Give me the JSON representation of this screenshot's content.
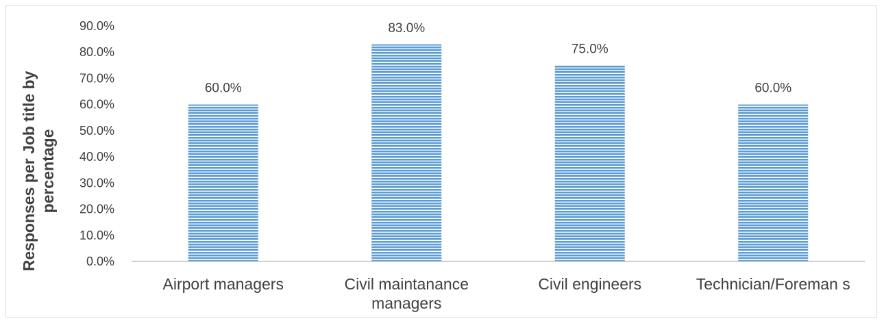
{
  "chart_data": {
    "type": "bar",
    "title": "",
    "xlabel": "",
    "ylabel_lines": [
      "Responses per Job title by",
      "percentage"
    ],
    "categories": [
      [
        "Airport managers"
      ],
      [
        "Civil maintanance",
        "managers"
      ],
      [
        "Civil engineers"
      ],
      [
        "Technician/Foreman s"
      ]
    ],
    "values": [
      60.0,
      83.0,
      75.0,
      60.0
    ],
    "data_labels": [
      "60.0%",
      "83.0%",
      "75.0%",
      "60.0%"
    ],
    "y_ticks": [
      "0.0%",
      "10.0%",
      "20.0%",
      "30.0%",
      "40.0%",
      "50.0%",
      "60.0%",
      "70.0%",
      "80.0%",
      "90.0%"
    ],
    "ylim": [
      0,
      90
    ],
    "grid": false,
    "legend": "none",
    "bar_color": "#5b9bd5",
    "bar_fill_pattern": "horizontal-stripes",
    "stripe_color": "#ffffff"
  }
}
